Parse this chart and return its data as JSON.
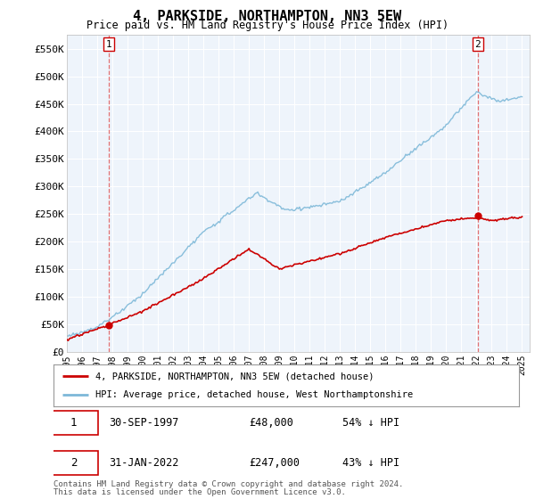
{
  "title": "4, PARKSIDE, NORTHAMPTON, NN3 5EW",
  "subtitle": "Price paid vs. HM Land Registry's House Price Index (HPI)",
  "ylabel_ticks": [
    "£0",
    "£50K",
    "£100K",
    "£150K",
    "£200K",
    "£250K",
    "£300K",
    "£350K",
    "£400K",
    "£450K",
    "£500K",
    "£550K"
  ],
  "ytick_values": [
    0,
    50000,
    100000,
    150000,
    200000,
    250000,
    300000,
    350000,
    400000,
    450000,
    500000,
    550000
  ],
  "ylim": [
    0,
    575000
  ],
  "xlim_start": 1995.0,
  "xlim_end": 2025.5,
  "hpi_color": "#7db8d8",
  "price_color": "#cc0000",
  "dashed_color": "#e05050",
  "point1_x": 1997.75,
  "point1_y": 48000,
  "point2_x": 2022.08,
  "point2_y": 247000,
  "legend_line1": "4, PARKSIDE, NORTHAMPTON, NN3 5EW (detached house)",
  "legend_line2": "HPI: Average price, detached house, West Northamptonshire",
  "footnote1": "Contains HM Land Registry data © Crown copyright and database right 2024.",
  "footnote2": "This data is licensed under the Open Government Licence v3.0.",
  "background_color": "#ffffff",
  "chart_bg_color": "#eef4fb",
  "grid_color": "#ffffff"
}
